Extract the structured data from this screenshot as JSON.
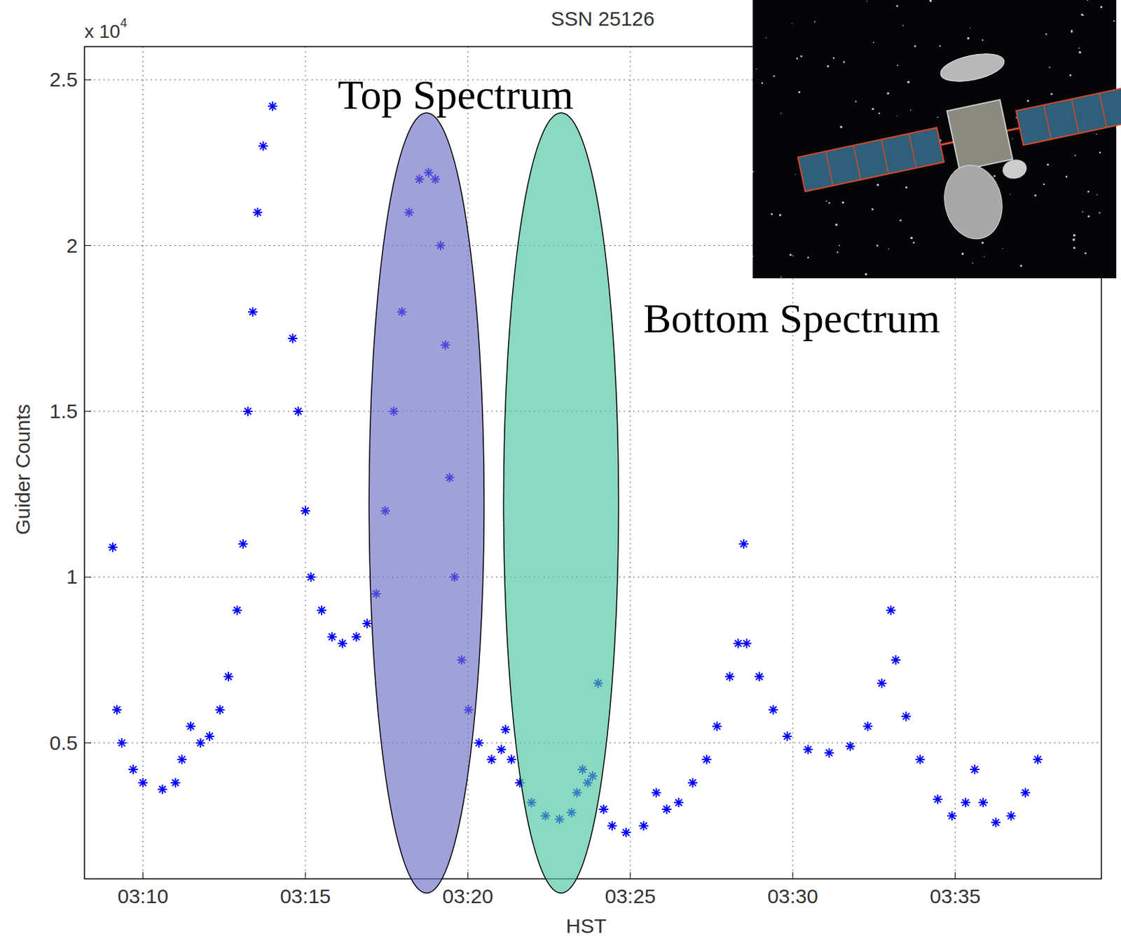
{
  "chart_data": {
    "type": "scatter",
    "title": "SSN 25126",
    "x_label": "HST",
    "y_label": "Guider Counts",
    "y_scale_label": {
      "base": "x 10",
      "exponent": "4"
    },
    "marker": "asterisk",
    "grid": true,
    "xlim": [
      188.2,
      219.5
    ],
    "xticks": [
      {
        "value": 190,
        "label": "03:10"
      },
      {
        "value": 195,
        "label": "03:15"
      },
      {
        "value": 200,
        "label": "03:20"
      },
      {
        "value": 205,
        "label": "03:25"
      },
      {
        "value": 210,
        "label": "03:30"
      },
      {
        "value": 215,
        "label": "03:35"
      }
    ],
    "ylim": [
      0.09,
      2.6
    ],
    "yticks": [
      0.5,
      1,
      1.5,
      2,
      2.5
    ],
    "series": [
      {
        "name": "SSN 25126",
        "color": "#0000ff",
        "x": [
          189.07,
          189.2,
          189.35,
          189.7,
          190.0,
          190.6,
          191.0,
          191.2,
          191.47,
          191.77,
          192.05,
          192.37,
          192.63,
          192.9,
          193.08,
          193.23,
          193.38,
          193.53,
          193.7,
          193.99,
          194.3,
          194.61,
          194.78,
          195.0,
          195.17,
          195.5,
          195.82,
          196.14,
          196.57,
          196.9,
          197.18,
          197.46,
          197.72,
          197.97,
          198.19,
          198.51,
          198.79,
          199.0,
          199.16,
          199.31,
          199.44,
          199.59,
          199.81,
          200.02,
          200.34,
          200.73,
          201.03,
          201.16,
          201.34,
          201.6,
          201.96,
          202.39,
          202.82,
          203.19,
          203.36,
          203.53,
          203.69,
          203.84,
          204.01,
          204.18,
          204.44,
          204.87,
          205.41,
          205.8,
          206.12,
          206.49,
          206.92,
          207.35,
          207.67,
          208.06,
          208.32,
          208.49,
          208.58,
          208.97,
          209.4,
          209.83,
          210.47,
          211.12,
          211.77,
          212.31,
          212.74,
          213.02,
          213.17,
          213.49,
          213.92,
          214.46,
          214.9,
          215.32,
          215.6,
          215.86,
          216.25,
          216.72,
          217.16,
          217.54
        ],
        "values": [
          1.09,
          0.6,
          0.5,
          0.42,
          0.38,
          0.36,
          0.38,
          0.45,
          0.55,
          0.5,
          0.52,
          0.6,
          0.7,
          0.9,
          1.1,
          1.5,
          1.8,
          2.1,
          2.3,
          2.42,
          null,
          1.72,
          1.5,
          1.2,
          1.0,
          0.9,
          0.82,
          0.8,
          0.82,
          0.86,
          0.95,
          1.2,
          1.5,
          1.8,
          2.1,
          2.2,
          2.22,
          2.2,
          2.0,
          1.7,
          1.3,
          1.0,
          0.75,
          0.6,
          0.5,
          0.45,
          0.48,
          0.54,
          0.45,
          0.38,
          0.32,
          0.28,
          0.27,
          0.29,
          0.35,
          0.42,
          0.38,
          0.4,
          0.68,
          0.3,
          0.25,
          0.23,
          0.25,
          0.35,
          0.3,
          0.32,
          0.38,
          0.45,
          0.55,
          0.7,
          0.8,
          1.1,
          0.8,
          0.7,
          0.6,
          0.52,
          0.48,
          0.47,
          0.49,
          0.55,
          0.68,
          0.9,
          0.75,
          0.58,
          0.45,
          0.33,
          0.28,
          0.32,
          0.42,
          0.32,
          0.26,
          0.28,
          0.35,
          0.45
        ]
      }
    ],
    "annotations": [
      {
        "text": "Top Spectrum",
        "x": [
          196.96,
          200.5
        ],
        "color": "#6f6fc6"
      },
      {
        "text": "Bottom Spectrum",
        "x": [
          201.1,
          204.64
        ],
        "color": "#4cc4a0"
      }
    ]
  }
}
